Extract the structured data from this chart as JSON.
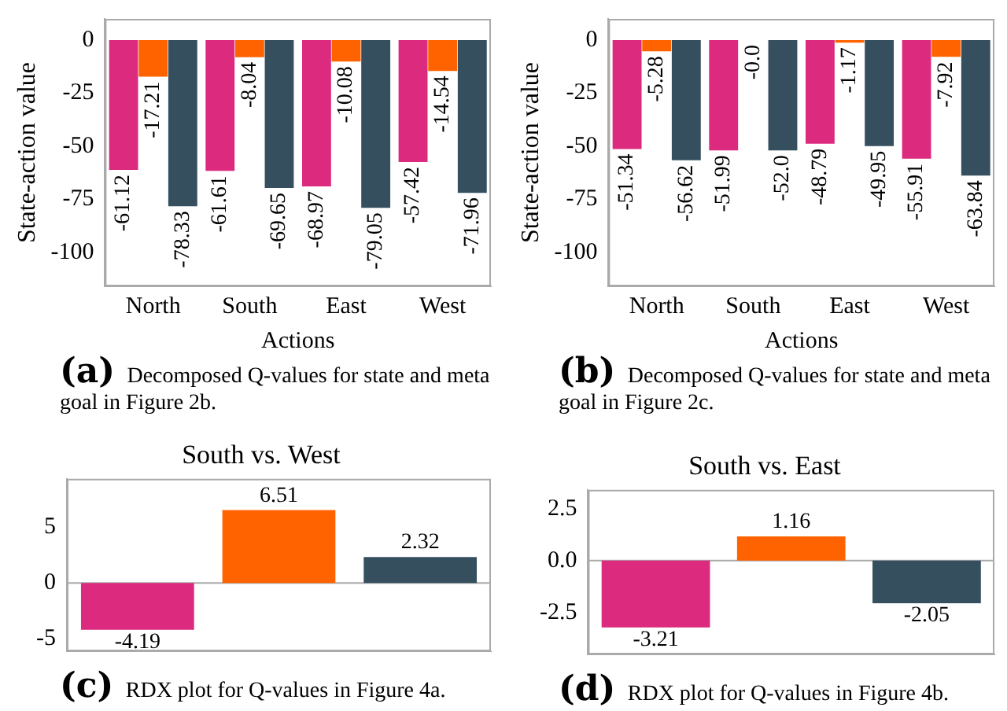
{
  "chart_data": [
    {
      "type": "bar",
      "xlabel": "Actions",
      "ylabel": "State-action value",
      "categories": [
        "North",
        "South",
        "East",
        "West"
      ],
      "series": [
        {
          "color": "#dc2a7e",
          "values": [
            -61.12,
            -61.61,
            -68.97,
            -57.42
          ]
        },
        {
          "color": "#fe6300",
          "values": [
            -17.21,
            -8.04,
            -10.08,
            -14.54
          ]
        },
        {
          "color": "#354f5f",
          "values": [
            -78.33,
            -69.65,
            -79.05,
            -71.96
          ]
        }
      ],
      "ylim": [
        -116,
        10
      ],
      "yticks": [
        0,
        -25,
        -50,
        -75,
        -100
      ],
      "data_labels": true,
      "annotations": [
        "(a) Decomposed Q-values for state and meta goal in Figure 2b."
      ]
    },
    {
      "type": "bar",
      "xlabel": "Actions",
      "ylabel": "State-action value",
      "categories": [
        "North",
        "South",
        "East",
        "West"
      ],
      "series": [
        {
          "color": "#dc2a7e",
          "values": [
            -51.34,
            -51.99,
            -48.79,
            -55.91
          ],
          "value_labels": [
            "-51.34",
            "-51.99",
            "-48.79",
            "-55.91"
          ]
        },
        {
          "color": "#fe6300",
          "values": [
            -5.28,
            0,
            -1.17,
            -7.92
          ],
          "value_labels": [
            "-5.28",
            "-0.0",
            "-1.17",
            "-7.92"
          ]
        },
        {
          "color": "#354f5f",
          "values": [
            -56.62,
            -52.0,
            -49.95,
            -63.84
          ],
          "value_labels": [
            "-56.62",
            "-52.0",
            "-49.95",
            "-63.84"
          ]
        }
      ],
      "ylim": [
        -116,
        10
      ],
      "yticks": [
        0,
        -25,
        -50,
        -75,
        -100
      ],
      "annotations": [
        "(b) Decomposed Q-values for state and meta goal in Figure 2c."
      ]
    },
    {
      "type": "bar",
      "title": "South vs. West",
      "categories": [
        null,
        null,
        null
      ],
      "values": [
        -4.19,
        6.51,
        2.32
      ],
      "colors": [
        "#dc2a7e",
        "#fe6300",
        "#354f5f"
      ],
      "ylim": [
        -6.1,
        9.3
      ],
      "yticks": [
        -5,
        0,
        5
      ],
      "data_labels": true,
      "ref_lines": [
        {
          "axis": "y",
          "value": 0,
          "color": "#aaaaaa"
        }
      ],
      "annotations": [
        "(c) RDX plot for Q-values in Figure 4a."
      ]
    },
    {
      "type": "bar",
      "title": "South vs. East",
      "categories": [
        null,
        null,
        null
      ],
      "values": [
        -3.21,
        1.16,
        -2.05
      ],
      "colors": [
        "#dc2a7e",
        "#fe6300",
        "#354f5f"
      ],
      "ylim": [
        -4.5,
        3.4
      ],
      "yticks": [
        {
          "value": -2.5,
          "label": "-2.5"
        },
        {
          "value": 0,
          "label": "0.0"
        },
        {
          "value": 2.5,
          "label": "2.5"
        }
      ],
      "data_labels": true,
      "ref_lines": [
        {
          "axis": "y",
          "value": 0,
          "color": "#aaaaaa"
        }
      ],
      "annotations": [
        "(d) RDX plot for Q-values in Figure 4b."
      ]
    }
  ]
}
